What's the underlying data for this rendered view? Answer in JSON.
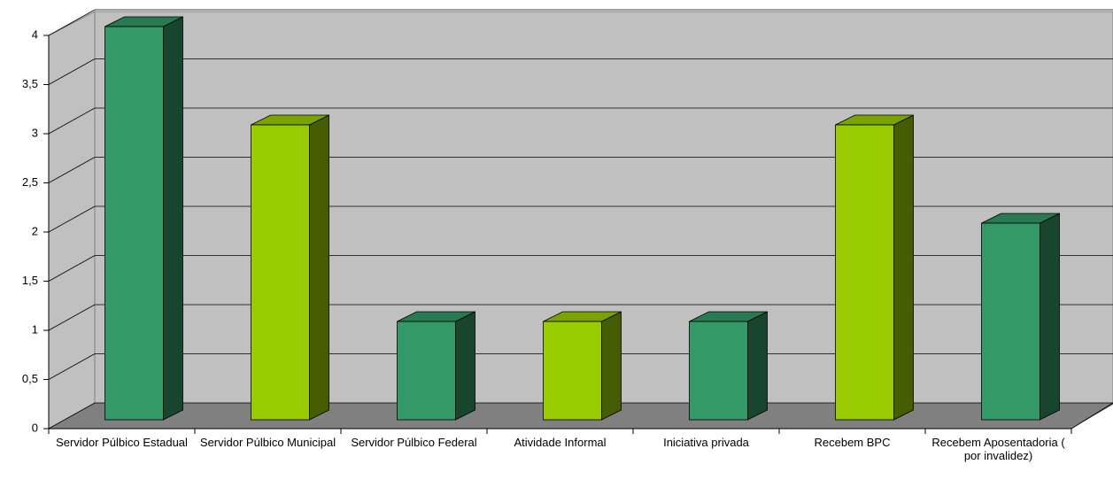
{
  "chart_data": {
    "type": "bar3d",
    "categories": [
      "Servidor Púlbico Estadual",
      "Servidor Púlbico Municipal",
      "Servidor Púlbico Federal",
      "Atividade Informal",
      "Iniciativa privada",
      "Recebem BPC",
      "Recebem Aposentadoria ( por invalidez)"
    ],
    "values": [
      4,
      3,
      1,
      1,
      1,
      3,
      2
    ],
    "colors": [
      "#339966",
      "#99cc00",
      "#339966",
      "#99cc00",
      "#339966",
      "#99cc00",
      "#339966"
    ],
    "ylim": [
      0,
      4
    ],
    "yticks": [
      0,
      {
        "value": 0.5,
        "label": "0,5"
      },
      1,
      {
        "value": 1.5,
        "label": "1,5"
      },
      2,
      {
        "value": 2.5,
        "label": "2,5"
      },
      3,
      {
        "value": 3.5,
        "label": "3,5"
      },
      4
    ],
    "grid": true
  }
}
